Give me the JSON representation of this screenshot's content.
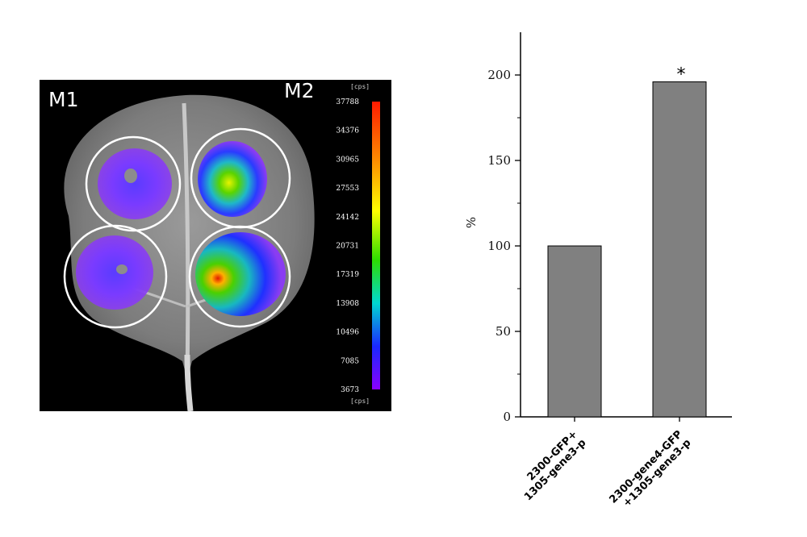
{
  "image_panel": {
    "labels": [
      "M1",
      "M2"
    ],
    "colorbar": {
      "unit_top": "[cps]",
      "unit_bottom": "[cps]",
      "ticks": [
        "37788",
        "34376",
        "30965",
        "27553",
        "24142",
        "20731",
        "17319",
        "13908",
        "10496",
        "7085",
        "3673"
      ]
    }
  },
  "chart_data": {
    "type": "bar",
    "categories": [
      "2300-GFP+\n1305-gene3-p",
      "2300-gene4-GFP\n+1305-gene3-p"
    ],
    "values": [
      100,
      196
    ],
    "ylabel": "%",
    "ylim": [
      0,
      225
    ],
    "yticks": [
      0,
      50,
      100,
      150,
      200
    ],
    "bar_color": "#808080",
    "annotations": [
      {
        "category_index": 1,
        "text": "*"
      }
    ]
  }
}
